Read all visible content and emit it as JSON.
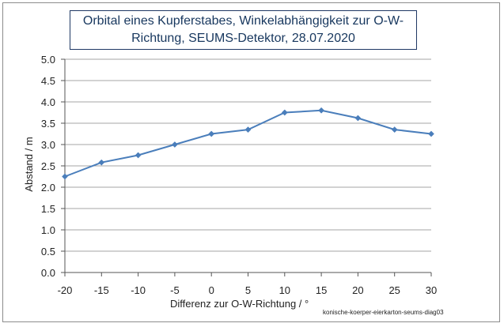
{
  "chart_data": {
    "type": "line",
    "title_line1": "Orbital eines Kupferstabes,  Winkelabhängigkeit zur O-W-",
    "title_line2": "Richtung, SEUMS-Detektor, 28.07.2020",
    "xlabel": "Differenz zur O-W-Richtung  / °",
    "ylabel": "Abstand / m",
    "footnote": "konische-koerper-eierkarton-seums-diag03",
    "x": [
      -20,
      -15,
      -10,
      -5,
      0,
      5,
      10,
      15,
      20,
      25,
      30
    ],
    "series": [
      {
        "name": "Abstand",
        "values": [
          2.25,
          2.58,
          2.75,
          3.0,
          3.25,
          3.35,
          3.75,
          3.8,
          3.62,
          3.35,
          3.25
        ]
      }
    ],
    "xlim": [
      -20,
      30
    ],
    "ylim": [
      0,
      5
    ],
    "xticks": [
      "-20",
      "-15",
      "-10",
      "-5",
      "0",
      "5",
      "10",
      "15",
      "20",
      "25",
      "30"
    ],
    "yticks": [
      "0.0",
      "0.5",
      "1.0",
      "1.5",
      "2.0",
      "2.5",
      "3.0",
      "3.5",
      "4.0",
      "4.5",
      "5.0"
    ],
    "grid": true,
    "colors": {
      "line": "#4a7ebb",
      "grid": "#a6a6a6",
      "title_border": "#1f3864",
      "title_text": "#17375e"
    }
  }
}
